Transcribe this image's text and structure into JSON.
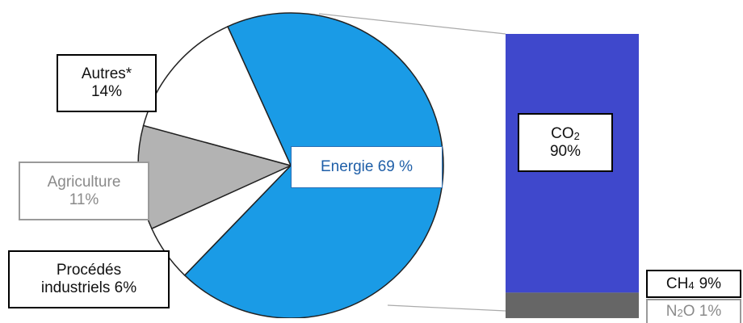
{
  "chart_data": [
    {
      "type": "pie",
      "categories": [
        "Energie",
        "Procédés industriels",
        "Agriculture",
        "Autres*"
      ],
      "values": [
        69,
        6,
        11,
        14
      ],
      "labels": {
        "autres": {
          "line1": "Autres*",
          "line2": "14%"
        },
        "agriculture": {
          "line1": "Agriculture",
          "line2": "11%"
        },
        "procedes": {
          "line1": "Procédés",
          "line2": "industriels 6%"
        },
        "energie": "Energie 69 %"
      },
      "colors": [
        "#1a9be6",
        "#ffffff",
        "#b3b3b3",
        "#ffffff"
      ],
      "exploded": "Energie"
    },
    {
      "type": "bar",
      "stacked": true,
      "categories": [
        "CO2",
        "CH4",
        "N2O"
      ],
      "values": [
        90,
        9,
        1
      ],
      "labels": {
        "co2": {
          "gas": "CO",
          "sub": "2",
          "pct": "90%"
        },
        "ch4": {
          "gas": "CH",
          "sub": "4",
          "pct": "9%"
        },
        "n2o": {
          "gas": "N",
          "sub": "2",
          "rest": "O 1%"
        }
      },
      "colors": [
        "#3f48cc",
        "#666666",
        "#ffffff"
      ]
    }
  ]
}
